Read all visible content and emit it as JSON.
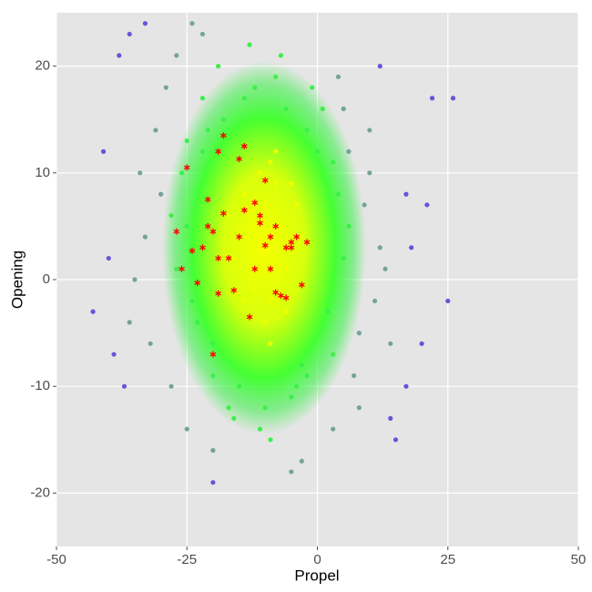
{
  "chart_data": {
    "type": "scatter",
    "xlabel": "Propel",
    "ylabel": "Opening",
    "xlim": [
      -50,
      50
    ],
    "ylim": [
      -25,
      25
    ],
    "xticks": [
      -50,
      -25,
      0,
      25,
      50
    ],
    "yticks": [
      -20,
      -10,
      0,
      10,
      20
    ],
    "grid": true,
    "series": [
      {
        "color": "#f0ff00",
        "marker": "circle",
        "x": [
          -12,
          -8,
          -10,
          -14,
          -6,
          -9,
          -11,
          -13,
          -7,
          -5,
          -15,
          -10,
          -8,
          -12,
          -4,
          -16,
          -9,
          -11,
          -6,
          -13,
          -10,
          -7,
          -14,
          -8,
          -12,
          -3,
          -17,
          -9,
          -5,
          -11
        ],
        "values": [
          4,
          6,
          2,
          8,
          1,
          -2,
          10,
          0,
          5,
          3,
          5,
          -4,
          9,
          -1,
          7,
          2,
          11,
          6,
          -3,
          3,
          7,
          0,
          -2,
          12,
          5,
          4,
          6,
          -6,
          9,
          1
        ]
      },
      {
        "color": "#3cf04a",
        "marker": "circle",
        "x": [
          -25,
          -22,
          -20,
          -18,
          -2,
          2,
          4,
          5,
          -24,
          -26,
          3,
          -1,
          -15,
          -10,
          -5,
          -12,
          -8,
          -14,
          -20,
          -3,
          -27,
          -23,
          0,
          6,
          -19,
          -16,
          -6,
          -11,
          -4,
          -21,
          -28,
          1,
          -13,
          -7,
          -17,
          -9,
          3,
          -25,
          -2,
          -22
        ],
        "values": [
          5,
          12,
          -6,
          15,
          14,
          -3,
          8,
          2,
          -2,
          10,
          -7,
          18,
          -10,
          -12,
          -11,
          18,
          19,
          17,
          -9,
          -8,
          1,
          -4,
          12,
          5,
          20,
          -13,
          16,
          -14,
          -10,
          14,
          6,
          16,
          22,
          21,
          -12,
          -15,
          11,
          13,
          -9,
          17
        ]
      },
      {
        "color": "#74a39c",
        "marker": "circle",
        "x": [
          -30,
          -33,
          -28,
          -35,
          5,
          8,
          10,
          12,
          7,
          -32,
          -29,
          -25,
          -20,
          3,
          9,
          6,
          -31,
          -27,
          11,
          13,
          -3,
          -5,
          -24,
          -34,
          14,
          -22,
          8,
          4,
          -36,
          10
        ],
        "values": [
          8,
          4,
          -10,
          0,
          16,
          -5,
          10,
          3,
          -9,
          -6,
          18,
          -14,
          -16,
          -14,
          7,
          12,
          14,
          21,
          -2,
          1,
          -17,
          -18,
          24,
          10,
          -6,
          23,
          -12,
          19,
          -4,
          14
        ]
      },
      {
        "color": "#6655d8",
        "marker": "circle",
        "x": [
          -43,
          -38,
          -40,
          -37,
          -36,
          17,
          18,
          22,
          26,
          25,
          17,
          12,
          -41,
          -33,
          21,
          15,
          -39,
          -20,
          14,
          20
        ],
        "values": [
          -3,
          21,
          2,
          -10,
          23,
          -10,
          3,
          17,
          17,
          -2,
          8,
          20,
          12,
          24,
          7,
          -15,
          -7,
          -19,
          -13,
          -6
        ]
      },
      {
        "color": "#ff0000",
        "marker": "star",
        "x": [
          -18,
          -14,
          -15,
          -19,
          -25,
          -21,
          -10,
          -12,
          -8,
          -5,
          -3,
          -11,
          -9,
          -20,
          -22,
          -17,
          -13,
          -7,
          -6,
          -4,
          -27,
          -24,
          -16,
          -23,
          -18,
          -19,
          -14,
          -11,
          -10,
          -8,
          -6,
          -20,
          -26,
          -21,
          -12,
          -5,
          -19,
          -15,
          -9,
          -2
        ],
        "values": [
          13.5,
          12.5,
          11.3,
          12,
          10.5,
          7.5,
          9.3,
          7.2,
          5,
          3.5,
          -0.5,
          6,
          4,
          -7,
          3,
          2,
          -3.5,
          -1.5,
          3,
          4,
          4.5,
          2.7,
          -1,
          -0.3,
          6.2,
          -1.3,
          6.5,
          5.3,
          3.2,
          -1.2,
          -1.7,
          4.5,
          1,
          5,
          1,
          3,
          2,
          4,
          1,
          3.5
        ]
      }
    ]
  }
}
